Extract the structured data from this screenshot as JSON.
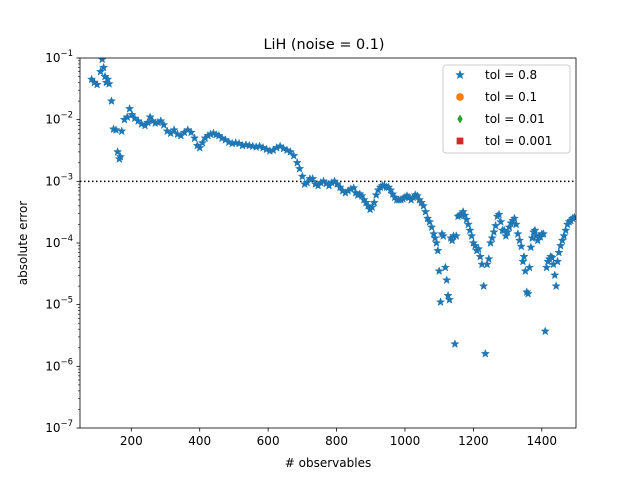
{
  "chart_data": {
    "type": "scatter",
    "title": "LiH (noise = 0.1)",
    "xlabel": "# observables",
    "ylabel": "absolute error",
    "xlim": [
      50,
      1500
    ],
    "ylim": [
      1e-07,
      0.1
    ],
    "yscale": "log",
    "xticks": [
      200,
      400,
      600,
      800,
      1000,
      1200,
      1400
    ],
    "xtick_labels": [
      "200",
      "400",
      "600",
      "800",
      "1000",
      "1200",
      "1400"
    ],
    "yticks": [
      1e-07,
      1e-06,
      1e-05,
      0.0001,
      0.001,
      0.01,
      0.1
    ],
    "ytick_labels": [
      {
        "base": "10",
        "exp": "−7"
      },
      {
        "base": "10",
        "exp": "−6"
      },
      {
        "base": "10",
        "exp": "−5"
      },
      {
        "base": "10",
        "exp": "−4"
      },
      {
        "base": "10",
        "exp": "−3"
      },
      {
        "base": "10",
        "exp": "−2"
      },
      {
        "base": "10",
        "exp": "−1"
      }
    ],
    "reference_line": {
      "y": 0.001,
      "style": "dotted",
      "color": "#000000"
    },
    "legend_position": "upper-right",
    "series": [
      {
        "name": "tol = 0.8",
        "marker": "star",
        "color": "#1f77b4",
        "points": [
          [
            84,
            0.045
          ],
          [
            92,
            0.04
          ],
          [
            100,
            0.037
          ],
          [
            110,
            0.06
          ],
          [
            115,
            0.095
          ],
          [
            119,
            0.07
          ],
          [
            123,
            0.05
          ],
          [
            127,
            0.04
          ],
          [
            131,
            0.045
          ],
          [
            135,
            0.038
          ],
          [
            142,
            0.02
          ],
          [
            148,
            0.007
          ],
          [
            155,
            0.0068
          ],
          [
            160,
            0.003
          ],
          [
            165,
            0.0023
          ],
          [
            168,
            0.0025
          ],
          [
            172,
            0.0065
          ],
          [
            180,
            0.01
          ],
          [
            188,
            0.011
          ],
          [
            195,
            0.015
          ],
          [
            202,
            0.012
          ],
          [
            210,
            0.0105
          ],
          [
            220,
            0.0095
          ],
          [
            230,
            0.0085
          ],
          [
            240,
            0.008
          ],
          [
            248,
            0.009
          ],
          [
            255,
            0.011
          ],
          [
            262,
            0.0095
          ],
          [
            270,
            0.0088
          ],
          [
            278,
            0.009
          ],
          [
            286,
            0.0095
          ],
          [
            295,
            0.0082
          ],
          [
            305,
            0.0065
          ],
          [
            315,
            0.006
          ],
          [
            325,
            0.0068
          ],
          [
            335,
            0.0058
          ],
          [
            345,
            0.0055
          ],
          [
            355,
            0.0062
          ],
          [
            365,
            0.0068
          ],
          [
            375,
            0.0062
          ],
          [
            385,
            0.005
          ],
          [
            393,
            0.0038
          ],
          [
            400,
            0.0035
          ],
          [
            408,
            0.0042
          ],
          [
            416,
            0.005
          ],
          [
            424,
            0.0055
          ],
          [
            432,
            0.0058
          ],
          [
            440,
            0.006
          ],
          [
            448,
            0.0057
          ],
          [
            456,
            0.0055
          ],
          [
            465,
            0.005
          ],
          [
            475,
            0.0047
          ],
          [
            485,
            0.0043
          ],
          [
            495,
            0.0041
          ],
          [
            505,
            0.0042
          ],
          [
            515,
            0.0041
          ],
          [
            525,
            0.0038
          ],
          [
            535,
            0.0039
          ],
          [
            545,
            0.0038
          ],
          [
            555,
            0.0037
          ],
          [
            565,
            0.0036
          ],
          [
            575,
            0.0037
          ],
          [
            585,
            0.0035
          ],
          [
            595,
            0.0033
          ],
          [
            605,
            0.0031
          ],
          [
            615,
            0.0032
          ],
          [
            625,
            0.0035
          ],
          [
            635,
            0.0037
          ],
          [
            645,
            0.0034
          ],
          [
            655,
            0.0032
          ],
          [
            665,
            0.003
          ],
          [
            675,
            0.0026
          ],
          [
            685,
            0.002
          ],
          [
            692,
            0.0016
          ],
          [
            700,
            0.0012
          ],
          [
            707,
            0.0009
          ],
          [
            714,
            0.00095
          ],
          [
            722,
            0.0011
          ],
          [
            730,
            0.0011
          ],
          [
            738,
            0.0009
          ],
          [
            746,
            0.00085
          ],
          [
            754,
            0.00095
          ],
          [
            762,
            0.001
          ],
          [
            770,
            0.00092
          ],
          [
            778,
            0.00085
          ],
          [
            786,
            0.00095
          ],
          [
            794,
            0.001
          ],
          [
            802,
            0.0009
          ],
          [
            810,
            0.0008
          ],
          [
            818,
            0.0007
          ],
          [
            826,
            0.00065
          ],
          [
            834,
            0.0007
          ],
          [
            842,
            0.00075
          ],
          [
            850,
            0.00078
          ],
          [
            856,
            0.00065
          ],
          [
            862,
            0.0006
          ],
          [
            868,
            0.00062
          ],
          [
            874,
            0.00058
          ],
          [
            880,
            0.0005
          ],
          [
            886,
            0.00045
          ],
          [
            892,
            0.0004
          ],
          [
            898,
            0.00035
          ],
          [
            904,
            0.00038
          ],
          [
            910,
            0.00045
          ],
          [
            916,
            0.0006
          ],
          [
            922,
            0.00072
          ],
          [
            928,
            0.0008
          ],
          [
            934,
            0.00085
          ],
          [
            940,
            0.00085
          ],
          [
            946,
            0.0008
          ],
          [
            952,
            0.0008
          ],
          [
            958,
            0.00072
          ],
          [
            964,
            0.00062
          ],
          [
            970,
            0.00055
          ],
          [
            976,
            0.0005
          ],
          [
            982,
            0.0005
          ],
          [
            988,
            0.0005
          ],
          [
            994,
            0.00052
          ],
          [
            1000,
            0.00055
          ],
          [
            1006,
            0.00058
          ],
          [
            1012,
            0.00055
          ],
          [
            1018,
            0.0005
          ],
          [
            1024,
            0.00055
          ],
          [
            1030,
            0.0006
          ],
          [
            1036,
            0.00058
          ],
          [
            1042,
            0.0005
          ],
          [
            1048,
            0.00045
          ],
          [
            1054,
            0.0004
          ],
          [
            1060,
            0.00032
          ],
          [
            1066,
            0.00025
          ],
          [
            1072,
            0.00022
          ],
          [
            1078,
            0.00018
          ],
          [
            1084,
            0.00014
          ],
          [
            1088,
            0.00012
          ],
          [
            1092,
            0.0001
          ],
          [
            1096,
            7.5e-05
          ],
          [
            1100,
            3.5e-05
          ],
          [
            1104,
            1.1e-05
          ],
          [
            1108,
            0.00014
          ],
          [
            1112,
            0.00013
          ],
          [
            1118,
            4e-05
          ],
          [
            1122,
            2.5e-05
          ],
          [
            1126,
            1.4e-05
          ],
          [
            1130,
            1.2e-05
          ],
          [
            1134,
            0.00012
          ],
          [
            1138,
            0.00011
          ],
          [
            1142,
            0.00013
          ],
          [
            1146,
            2.3e-06
          ],
          [
            1150,
            0.00013
          ],
          [
            1155,
            0.00027
          ],
          [
            1160,
            0.00028
          ],
          [
            1165,
            0.00029
          ],
          [
            1170,
            0.00032
          ],
          [
            1175,
            0.00028
          ],
          [
            1180,
            0.00024
          ],
          [
            1185,
            0.0002
          ],
          [
            1190,
            0.00016
          ],
          [
            1195,
            0.00013
          ],
          [
            1200,
            0.0001
          ],
          [
            1205,
            9e-05
          ],
          [
            1210,
            7.5e-05
          ],
          [
            1215,
            8e-05
          ],
          [
            1220,
            6e-05
          ],
          [
            1225,
            4.5e-05
          ],
          [
            1230,
            2e-05
          ],
          [
            1235,
            1.6e-06
          ],
          [
            1240,
            4.5e-05
          ],
          [
            1245,
            5.5e-05
          ],
          [
            1250,
            0.0001
          ],
          [
            1255,
            0.00012
          ],
          [
            1260,
            0.00015
          ],
          [
            1265,
            0.00019
          ],
          [
            1270,
            0.00027
          ],
          [
            1275,
            0.00029
          ],
          [
            1280,
            0.00022
          ],
          [
            1285,
            0.00016
          ],
          [
            1290,
            0.00016
          ],
          [
            1295,
            0.00013
          ],
          [
            1300,
            0.00015
          ],
          [
            1305,
            0.00018
          ],
          [
            1310,
            0.00021
          ],
          [
            1315,
            0.00023
          ],
          [
            1320,
            0.00025
          ],
          [
            1325,
            0.0002
          ],
          [
            1330,
            0.00014
          ],
          [
            1335,
            0.00011
          ],
          [
            1340,
            8.8e-05
          ],
          [
            1345,
            5e-05
          ],
          [
            1348,
            6e-05
          ],
          [
            1352,
            3.5e-05
          ],
          [
            1356,
            1.6e-05
          ],
          [
            1360,
            1.5e-05
          ],
          [
            1364,
            4e-05
          ],
          [
            1368,
            8.5e-05
          ],
          [
            1372,
            0.00012
          ],
          [
            1376,
            0.00015
          ],
          [
            1380,
            0.00016
          ],
          [
            1384,
            0.00013
          ],
          [
            1388,
            0.00011
          ],
          [
            1392,
            0.00013
          ],
          [
            1396,
            0.000125
          ],
          [
            1400,
            0.00014
          ],
          [
            1405,
            0.00014
          ],
          [
            1410,
            3.7e-06
          ],
          [
            1414,
            4e-05
          ],
          [
            1418,
            5e-05
          ],
          [
            1422,
            5.5e-05
          ],
          [
            1426,
            6e-05
          ],
          [
            1430,
            5.8e-05
          ],
          [
            1434,
            4.5e-05
          ],
          [
            1438,
            3e-05
          ],
          [
            1442,
            2e-05
          ],
          [
            1446,
            5e-05
          ],
          [
            1450,
            7e-05
          ],
          [
            1455,
            9e-05
          ],
          [
            1460,
            0.00011
          ],
          [
            1465,
            0.00013
          ],
          [
            1470,
            0.00016
          ],
          [
            1475,
            0.0002
          ],
          [
            1480,
            0.00022
          ],
          [
            1485,
            0.00023
          ],
          [
            1490,
            0.00025
          ],
          [
            1495,
            0.00026
          ]
        ]
      },
      {
        "name": "tol = 0.1",
        "marker": "circle",
        "color": "#ff7f0e",
        "points": []
      },
      {
        "name": "tol = 0.01",
        "marker": "diamond",
        "color": "#2ca02c",
        "points": []
      },
      {
        "name": "tol = 0.001",
        "marker": "square",
        "color": "#d62728",
        "points": []
      }
    ]
  }
}
